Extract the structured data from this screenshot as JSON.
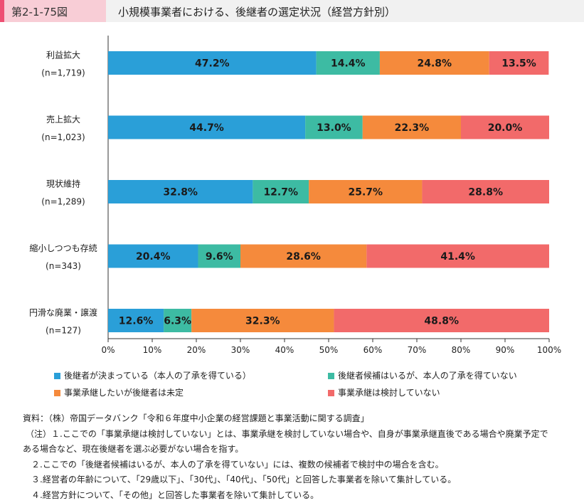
{
  "figure_number": "第2-1-75図",
  "figure_title": "小規模事業者における、後継者の選定状況（経営方針別）",
  "chart_data": {
    "type": "bar",
    "orientation": "horizontal-stacked-100",
    "categories": [
      {
        "name": "利益拡大",
        "n": "(n=1,719)"
      },
      {
        "name": "売上拡大",
        "n": "(n=1,023)"
      },
      {
        "name": "現状維持",
        "n": "(n=1,289)"
      },
      {
        "name": "縮小しつつも存続",
        "n": "(n=343)"
      },
      {
        "name": "円滑な廃業・譲渡",
        "n": "(n=127)"
      }
    ],
    "series": [
      {
        "name": "後継者が決まっている（本人の了承を得ている）",
        "color": "#2a9fd8",
        "values": [
          47.2,
          44.7,
          32.8,
          20.4,
          12.6
        ],
        "labels": [
          "47.2%",
          "44.7%",
          "32.8%",
          "20.4%",
          "12.6%"
        ]
      },
      {
        "name": "後継者候補はいるが、本人の了承を得ていない",
        "color": "#3dbba3",
        "values": [
          14.4,
          13.0,
          12.7,
          9.6,
          6.3
        ],
        "labels": [
          "14.4%",
          "13.0%",
          "12.7%",
          "9.6%",
          "6.3%"
        ]
      },
      {
        "name": "事業承継したいが後継者は未定",
        "color": "#f58a3c",
        "values": [
          24.8,
          22.3,
          25.7,
          28.6,
          32.3
        ],
        "labels": [
          "24.8%",
          "22.3%",
          "25.7%",
          "28.6%",
          "32.3%"
        ]
      },
      {
        "name": "事業承継は検討していない",
        "color": "#f26a6a",
        "values": [
          13.5,
          20.0,
          28.8,
          41.4,
          48.8
        ],
        "labels": [
          "13.5%",
          "20.0%",
          "28.8%",
          "41.4%",
          "48.8%"
        ]
      }
    ],
    "x_ticks": [
      "0%",
      "10%",
      "20%",
      "30%",
      "40%",
      "50%",
      "60%",
      "70%",
      "80%",
      "90%",
      "100%"
    ],
    "xlim": [
      0,
      100
    ],
    "grid": false,
    "legend_placement": "bottom"
  },
  "notes": [
    "資料：（株）帝国データバンク「令和６年度中小企業の経営課題と事業活動に関する調査」",
    "（注）１.ここでの「事業承継は検討していない」とは、事業承継を検討していない場合や、自身が事業承継直後である場合や廃業予定で",
    "ある場合など、現在後継者を選ぶ必要がない場合を指す。",
    "２.ここでの「後継者候補はいるが、本人の了承を得ていない」には、複数の候補者で検討中の場合を含む。",
    "３.経営者の年齢について、「29歳以下」、「30代」、「40代」、「50代」と回答した事業者を除いて集計している。",
    "４.経営方針について、「その他」と回答した事業者を除いて集計している。"
  ]
}
